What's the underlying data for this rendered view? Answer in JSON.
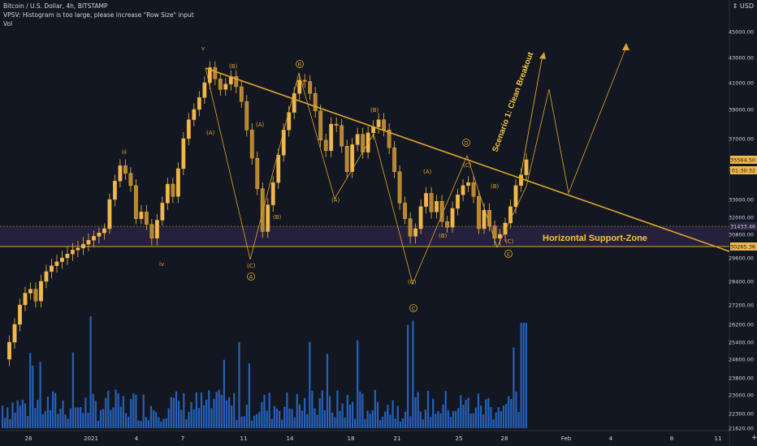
{
  "legend": {
    "symbol": "Bitcoin / U.S. Dollar, 4h, BITSTAMP",
    "indicator": "VPSV: Histogram is too large, please increase \"Row Size\" input",
    "volume": "Vol"
  },
  "currency": "USD",
  "currency_arrow": "⇕",
  "y_axis": {
    "ticks": [
      45000,
      43000,
      41000,
      39000,
      37000,
      35000,
      33000,
      32000,
      30800,
      29600,
      28400,
      27200,
      26200,
      25400,
      24600,
      23800,
      23000,
      22300,
      21620
    ],
    "tick_labels": [
      "45000.00",
      "43000.00",
      "41000.00",
      "39000.00",
      "37000.00",
      "35000.00",
      "33000.00",
      "32000.00",
      "30800.00",
      "29600.00",
      "28400.00",
      "27200.00",
      "26200.00",
      "25400.00",
      "24600.00",
      "23800.00",
      "23000.00",
      "22300.00",
      "21620.00"
    ]
  },
  "x_axis": {
    "labels": [
      "28",
      "2021",
      "4",
      "7",
      "11",
      "14",
      "18",
      "21",
      "25",
      "28",
      "Feb",
      "4",
      "8",
      "11"
    ]
  },
  "price_badges": {
    "last_price": "35564.50",
    "countdown": "01:30:32",
    "upper_level": "31433.46",
    "lower_level": "30265.36"
  },
  "annotations": {
    "support_zone": "Horizontal Support-Zone",
    "scenario": "Scenario 1: Clean Breakout",
    "wave_i": "iii",
    "wave_iv": "iv",
    "wave_v": "v",
    "A_circle": "A",
    "B_circle": "B",
    "C_circle": "C",
    "D_circle": "D",
    "E_circle": "E",
    "sub_A": "(A)",
    "sub_B": "(B)",
    "sub_C": "(C)"
  },
  "colors": {
    "background": "#131722",
    "candle_up": "#f0b84a",
    "candle_down": "#f0b84a",
    "volume": "#2b6ed3",
    "drawing": "#e0a62d",
    "zone": "#2a2342",
    "text": "#d1d4dc",
    "badge_price": "#ffffff"
  },
  "chart_data": {
    "type": "candlestick",
    "timeframe": "4h",
    "symbol": "BTCUSD",
    "ylim": [
      21620,
      45000
    ],
    "series": [
      {
        "name": "close",
        "values": [
          24600,
          25400,
          26200,
          27200,
          27800,
          28000,
          27400,
          28400,
          28900,
          29200,
          29400,
          29600,
          29800,
          30000,
          30100,
          30300,
          30500,
          30700,
          30900,
          31200,
          33000,
          34200,
          35200,
          34700,
          33900,
          31900,
          32300,
          31500,
          30600,
          31800,
          32800,
          34000,
          33200,
          35000,
          37000,
          38300,
          39000,
          39900,
          41000,
          42200,
          41300,
          40500,
          40900,
          41500,
          40700,
          39600,
          37600,
          35700,
          33700,
          31000,
          32700,
          34100,
          35900,
          37600,
          38800,
          40200,
          41200,
          41100,
          40200,
          38900,
          36900,
          36200,
          38000,
          37900,
          36500,
          34800,
          36600,
          37300,
          36100,
          37400,
          37800,
          38300,
          37600,
          36400,
          34800,
          32800,
          31900,
          30700,
          31200,
          32600,
          33400,
          32300,
          32900,
          31700,
          31300,
          32500,
          33300,
          33900,
          34100,
          33200,
          31200,
          32400,
          31400,
          30600,
          30800,
          31600,
          32600,
          33900,
          34600,
          35600
        ]
      },
      {
        "name": "volume",
        "values": []
      }
    ],
    "annotations": [
      "Horizontal Support-Zone",
      "Scenario 1: Clean Breakout"
    ]
  }
}
